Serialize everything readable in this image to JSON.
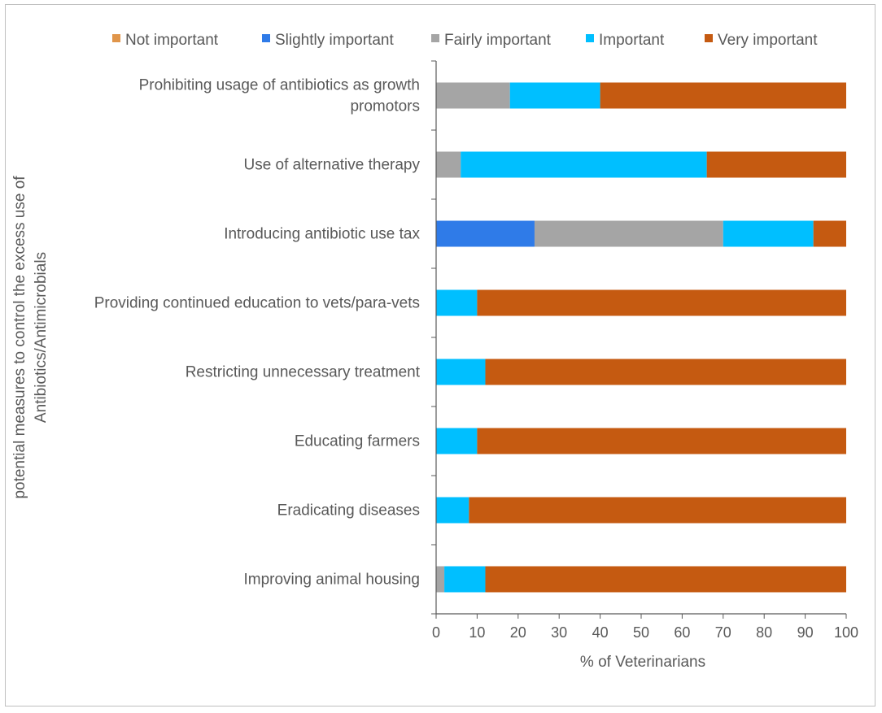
{
  "chart_data": {
    "type": "bar",
    "orientation": "horizontal",
    "stacked": true,
    "title": "",
    "xlabel": "% of Veterinarians",
    "ylabel": "potential measures to control the excess use of Antibiotics/Antimicrobials",
    "ylabel_lines": [
      "potential measures to control the excess use of",
      "Antibiotics/Antimicrobials"
    ],
    "xlim": [
      0,
      100
    ],
    "xticks": [
      0,
      10,
      20,
      30,
      40,
      50,
      60,
      70,
      80,
      90,
      100
    ],
    "xtick_labels": [
      "0",
      "10",
      "20",
      "30",
      "40",
      "50",
      "60",
      "70",
      "80",
      "90",
      "100"
    ],
    "grid": false,
    "legend_position": "top",
    "categories": [
      "Prohibiting usage of antibiotics as growth promotors",
      "Use of alternative therapy",
      "Introducing antibiotic use tax",
      "Providing continued education to vets/para-vets",
      "Restricting unnecessary treatment",
      "Educating farmers",
      "Eradicating diseases",
      "Improving animal housing"
    ],
    "category_lines": [
      [
        "Prohibiting usage of antibiotics as growth",
        "promotors"
      ],
      [
        "Use of alternative therapy"
      ],
      [
        "Introducing antibiotic use tax"
      ],
      [
        "Providing continued education to vets/para-vets"
      ],
      [
        "Restricting unnecessary treatment"
      ],
      [
        "Educating farmers"
      ],
      [
        "Eradicating diseases"
      ],
      [
        "Improving animal housing"
      ]
    ],
    "series": [
      {
        "name": "Not important",
        "color": "#e0954a",
        "values": [
          0,
          0,
          0,
          0,
          0,
          0,
          0,
          0
        ]
      },
      {
        "name": "Slightly important",
        "color": "#2f7be8",
        "values": [
          0,
          0,
          24,
          0,
          0,
          0,
          0,
          0
        ]
      },
      {
        "name": "Fairly important",
        "color": "#a5a5a5",
        "values": [
          18,
          6,
          46,
          0,
          0,
          0,
          0,
          2
        ]
      },
      {
        "name": "Important",
        "color": "#00bfff",
        "values": [
          22,
          60,
          22,
          10,
          12,
          10,
          8,
          10
        ]
      },
      {
        "name": "Very important",
        "color": "#c55a11",
        "values": [
          60,
          34,
          8,
          90,
          88,
          90,
          92,
          88
        ]
      }
    ]
  }
}
